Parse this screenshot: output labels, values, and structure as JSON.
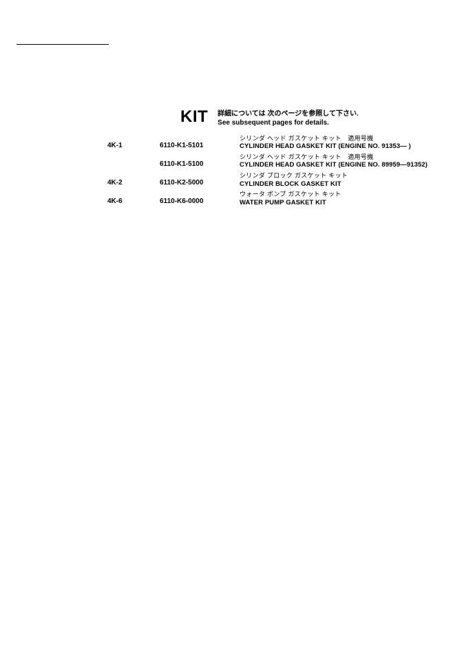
{
  "header": {
    "title": "KIT",
    "subtitle_jp": "詳細については 次のページを参照して下さい.",
    "subtitle_en": "See subsequent pages for details."
  },
  "rows": [
    {
      "ref": "4K-1",
      "part": "6110-K1-5101",
      "desc_jp": "シリンダ ヘッド ガスケット キット　適用号機",
      "desc_en": "CYLINDER HEAD GASKET KIT (ENGINE NO. 91353― )"
    },
    {
      "ref": "",
      "part": "6110-K1-5100",
      "desc_jp": "シリンダ ヘッド ガスケット キット　適用号機",
      "desc_en": "CYLINDER HEAD GASKET KIT (ENGINE NO. 89959―91352)"
    },
    {
      "ref": "4K-2",
      "part": "6110-K2-5000",
      "desc_jp": "シリンダ ブロック ガスケット キット",
      "desc_en": "CYLINDER BLOCK GASKET KIT"
    },
    {
      "ref": "4K-6",
      "part": "6110-K6-0000",
      "desc_jp": "ウォータ ポンプ ガスケット キット",
      "desc_en": "WATER PUMP GASKET KIT"
    }
  ]
}
